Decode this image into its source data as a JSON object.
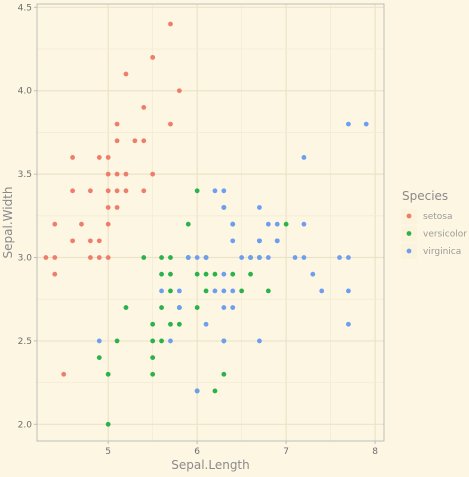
{
  "chart_data": {
    "type": "scatter",
    "xlabel": "Sepal.Length",
    "ylabel": "Sepal.Width",
    "xlim": [
      4.2,
      8.1
    ],
    "ylim": [
      1.9,
      4.52
    ],
    "xticks": [
      5,
      6,
      7,
      8
    ],
    "yticks": [
      2.0,
      2.5,
      3.0,
      3.5,
      4.0,
      4.5
    ],
    "xtick_labels": [
      "5",
      "6",
      "7",
      "8"
    ],
    "ytick_labels": [
      "2.0",
      "2.5",
      "3.0",
      "3.5",
      "4.0",
      "4.5"
    ],
    "grid": true,
    "legend": {
      "title": "Species",
      "position": "right"
    },
    "series": [
      {
        "name": "setosa",
        "color": "#ee7e6b",
        "points": [
          [
            4.3,
            3.0
          ],
          [
            4.4,
            2.9
          ],
          [
            4.4,
            3.0
          ],
          [
            4.4,
            3.2
          ],
          [
            4.5,
            2.3
          ],
          [
            4.6,
            3.1
          ],
          [
            4.6,
            3.4
          ],
          [
            4.6,
            3.6
          ],
          [
            4.7,
            3.2
          ],
          [
            4.8,
            3.0
          ],
          [
            4.8,
            3.1
          ],
          [
            4.8,
            3.4
          ],
          [
            4.9,
            3.0
          ],
          [
            4.9,
            3.1
          ],
          [
            4.9,
            3.6
          ],
          [
            5.0,
            3.0
          ],
          [
            5.0,
            3.2
          ],
          [
            5.0,
            3.3
          ],
          [
            5.0,
            3.4
          ],
          [
            5.0,
            3.5
          ],
          [
            5.0,
            3.6
          ],
          [
            5.1,
            3.3
          ],
          [
            5.1,
            3.4
          ],
          [
            5.1,
            3.5
          ],
          [
            5.1,
            3.7
          ],
          [
            5.1,
            3.8
          ],
          [
            5.2,
            3.4
          ],
          [
            5.2,
            3.5
          ],
          [
            5.2,
            4.1
          ],
          [
            5.3,
            3.7
          ],
          [
            5.4,
            3.4
          ],
          [
            5.4,
            3.7
          ],
          [
            5.4,
            3.9
          ],
          [
            5.5,
            3.5
          ],
          [
            5.5,
            4.2
          ],
          [
            5.7,
            3.8
          ],
          [
            5.7,
            4.4
          ],
          [
            5.8,
            4.0
          ]
        ]
      },
      {
        "name": "versicolor",
        "color": "#2bb24c",
        "points": [
          [
            4.9,
            2.4
          ],
          [
            5.0,
            2.0
          ],
          [
            5.0,
            2.3
          ],
          [
            5.1,
            2.5
          ],
          [
            5.2,
            2.7
          ],
          [
            5.4,
            3.0
          ],
          [
            5.5,
            2.3
          ],
          [
            5.5,
            2.4
          ],
          [
            5.5,
            2.5
          ],
          [
            5.5,
            2.6
          ],
          [
            5.6,
            2.5
          ],
          [
            5.6,
            2.7
          ],
          [
            5.6,
            2.9
          ],
          [
            5.6,
            3.0
          ],
          [
            5.7,
            2.6
          ],
          [
            5.7,
            2.8
          ],
          [
            5.7,
            2.9
          ],
          [
            5.7,
            3.0
          ],
          [
            5.8,
            2.6
          ],
          [
            5.8,
            2.7
          ],
          [
            5.9,
            3.0
          ],
          [
            5.9,
            3.2
          ],
          [
            6.0,
            2.2
          ],
          [
            6.0,
            2.7
          ],
          [
            6.0,
            2.9
          ],
          [
            6.0,
            3.4
          ],
          [
            6.1,
            2.8
          ],
          [
            6.1,
            2.9
          ],
          [
            6.1,
            3.0
          ],
          [
            6.2,
            2.2
          ],
          [
            6.2,
            2.9
          ],
          [
            6.3,
            2.3
          ],
          [
            6.3,
            2.5
          ],
          [
            6.3,
            3.3
          ],
          [
            6.4,
            2.9
          ],
          [
            6.4,
            3.2
          ],
          [
            6.5,
            2.8
          ],
          [
            6.6,
            2.9
          ],
          [
            6.6,
            3.0
          ],
          [
            6.7,
            3.0
          ],
          [
            6.7,
            3.1
          ],
          [
            6.8,
            2.8
          ],
          [
            6.9,
            3.1
          ],
          [
            7.0,
            3.2
          ]
        ]
      },
      {
        "name": "virginica",
        "color": "#6e9ef0",
        "points": [
          [
            4.9,
            2.5
          ],
          [
            5.6,
            2.8
          ],
          [
            5.7,
            2.5
          ],
          [
            5.8,
            2.7
          ],
          [
            5.8,
            2.8
          ],
          [
            5.9,
            3.0
          ],
          [
            6.0,
            2.2
          ],
          [
            6.0,
            3.0
          ],
          [
            6.1,
            2.6
          ],
          [
            6.1,
            3.0
          ],
          [
            6.2,
            2.8
          ],
          [
            6.2,
            3.4
          ],
          [
            6.3,
            2.5
          ],
          [
            6.3,
            2.7
          ],
          [
            6.3,
            2.8
          ],
          [
            6.3,
            2.9
          ],
          [
            6.3,
            3.3
          ],
          [
            6.3,
            3.4
          ],
          [
            6.4,
            2.7
          ],
          [
            6.4,
            2.8
          ],
          [
            6.4,
            3.1
          ],
          [
            6.4,
            3.2
          ],
          [
            6.5,
            3.0
          ],
          [
            6.6,
            3.0
          ],
          [
            6.7,
            2.5
          ],
          [
            6.7,
            3.0
          ],
          [
            6.7,
            3.1
          ],
          [
            6.7,
            3.3
          ],
          [
            6.8,
            3.0
          ],
          [
            6.8,
            3.2
          ],
          [
            6.9,
            3.1
          ],
          [
            6.9,
            3.2
          ],
          [
            7.1,
            3.0
          ],
          [
            7.2,
            3.0
          ],
          [
            7.2,
            3.2
          ],
          [
            7.2,
            3.6
          ],
          [
            7.3,
            2.9
          ],
          [
            7.4,
            2.8
          ],
          [
            7.6,
            3.0
          ],
          [
            7.7,
            2.6
          ],
          [
            7.7,
            2.8
          ],
          [
            7.7,
            3.0
          ],
          [
            7.7,
            3.8
          ],
          [
            7.9,
            3.8
          ]
        ]
      }
    ]
  }
}
